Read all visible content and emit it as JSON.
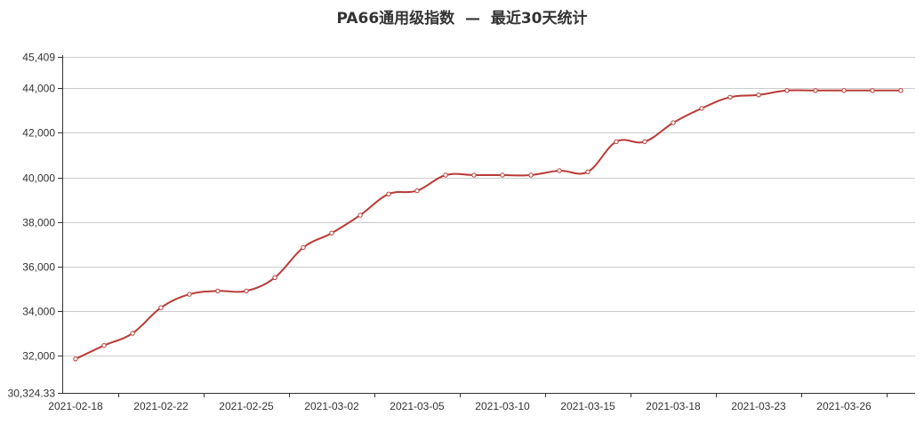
{
  "chart_data": {
    "type": "line",
    "title": "PA66通用级指数  —  最近30天统计",
    "xlabel": "",
    "ylabel": "",
    "ylim": [
      30324.33,
      45409
    ],
    "y_ticks": [
      "30,324.33",
      "32,000",
      "34,000",
      "36,000",
      "38,000",
      "40,000",
      "42,000",
      "44,000",
      "45,409"
    ],
    "y_tick_values": [
      30324.33,
      32000,
      34000,
      36000,
      38000,
      40000,
      42000,
      44000,
      45409
    ],
    "x_tick_labels": [
      "2021-02-18",
      "2021-02-22",
      "2021-02-25",
      "2021-03-02",
      "2021-03-05",
      "2021-03-10",
      "2021-03-15",
      "2021-03-18",
      "2021-03-23",
      "2021-03-26"
    ],
    "x": [
      "2021-02-18",
      "2021-02-19",
      "2021-02-20",
      "2021-02-22",
      "2021-02-23",
      "2021-02-24",
      "2021-02-25",
      "2021-02-26",
      "2021-03-01",
      "2021-03-02",
      "2021-03-03",
      "2021-03-04",
      "2021-03-05",
      "2021-03-08",
      "2021-03-09",
      "2021-03-10",
      "2021-03-11",
      "2021-03-12",
      "2021-03-15",
      "2021-03-16",
      "2021-03-17",
      "2021-03-18",
      "2021-03-19",
      "2021-03-22",
      "2021-03-23",
      "2021-03-24",
      "2021-03-25",
      "2021-03-26",
      "2021-03-29",
      "2021-03-30"
    ],
    "series": [
      {
        "color": "#b83b36",
        "values": [
          31850,
          32450,
          33000,
          34150,
          34750,
          34900,
          34900,
          35500,
          36850,
          37500,
          38300,
          39250,
          39400,
          40100,
          40100,
          40100,
          40100,
          40300,
          40250,
          41600,
          41600,
          42450,
          43100,
          43600,
          43700,
          43900,
          43900,
          43900,
          43900,
          43900
        ]
      }
    ],
    "grid": true,
    "legend": "none"
  }
}
